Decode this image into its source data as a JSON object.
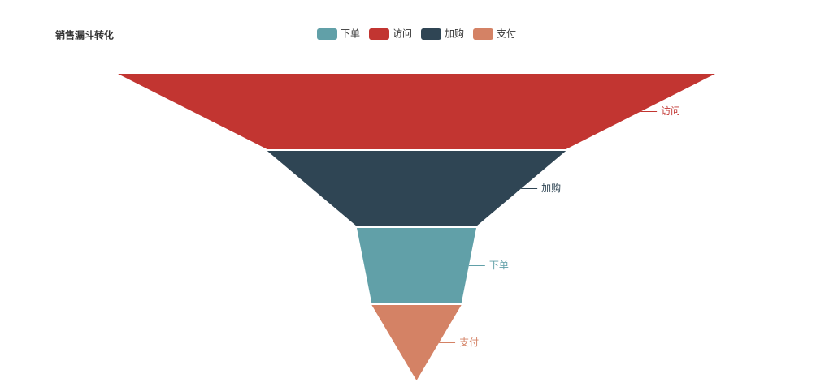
{
  "chart_data": {
    "type": "funnel",
    "title": "销售漏斗转化",
    "legend": [
      "下单",
      "访问",
      "加购",
      "支付"
    ],
    "categories": [
      "访问",
      "加购",
      "下单",
      "支付"
    ],
    "values": [
      100,
      50,
      20,
      15
    ],
    "colors": [
      "#c23531",
      "#2f4554",
      "#61a0a8",
      "#d48265"
    ]
  }
}
